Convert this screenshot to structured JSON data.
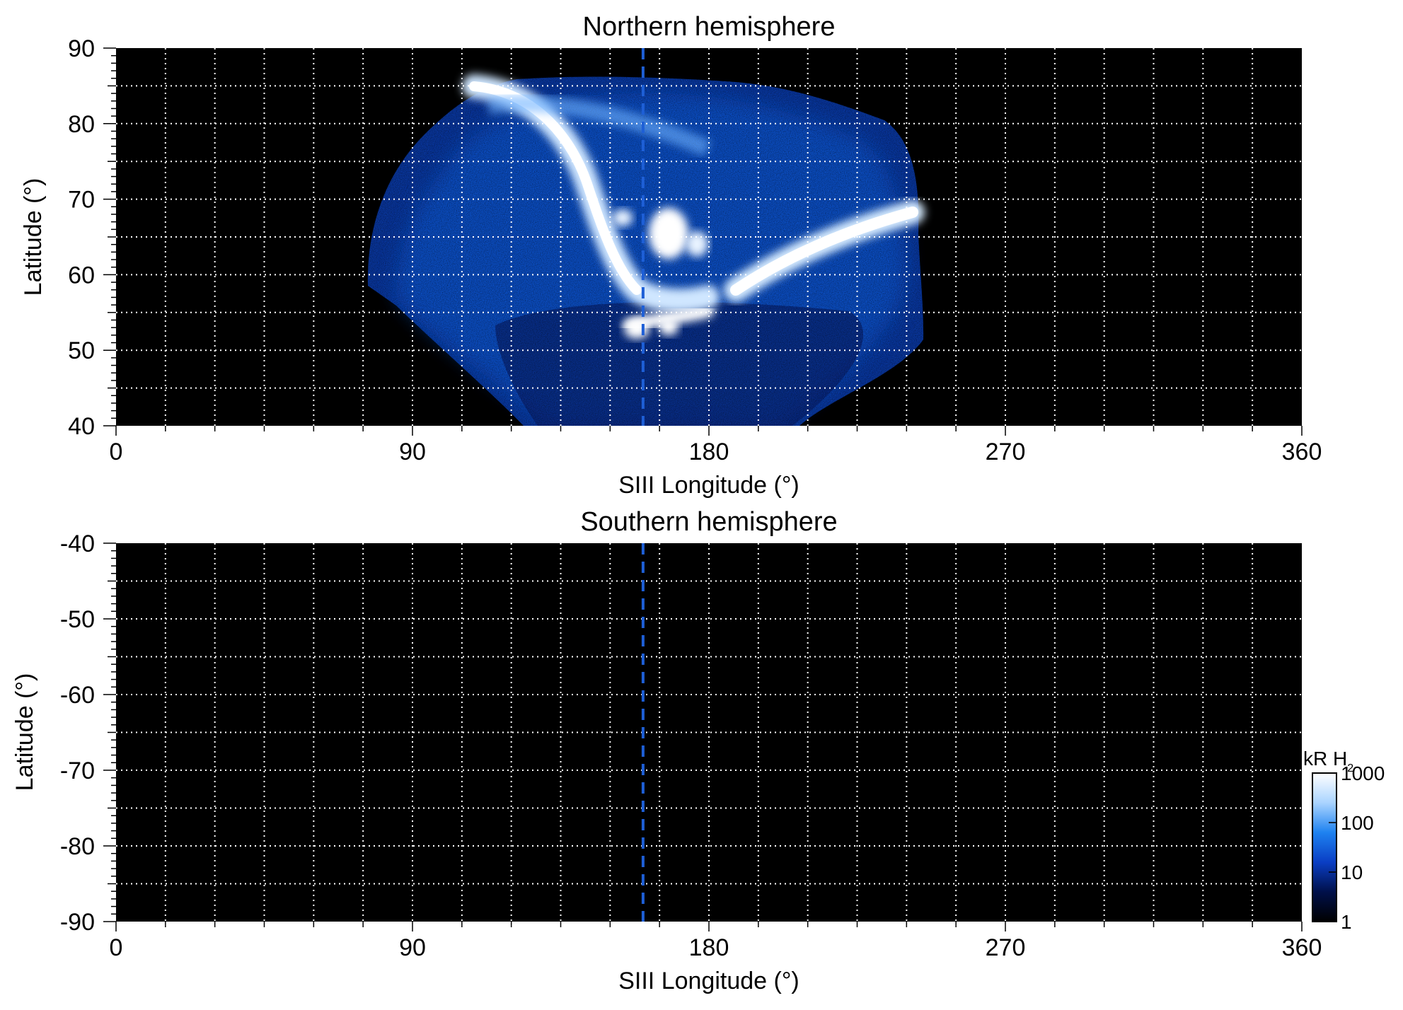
{
  "chart_data": [
    {
      "type": "heatmap",
      "title": "Northern hemisphere",
      "xlabel": "SIII Longitude (°)",
      "ylabel": "Latitude (°)",
      "xlim": [
        0,
        360
      ],
      "ylim": [
        40,
        90
      ],
      "x_ticks": [
        "0",
        "90",
        "180",
        "270",
        "360"
      ],
      "y_ticks": [
        "90",
        "80",
        "70",
        "60",
        "50",
        "40"
      ],
      "grid": true,
      "background": "#000000",
      "marker_line": {
        "longitude": 160,
        "style": "dashed",
        "color": "#1e5fd6"
      },
      "emission_region": {
        "longitude_range": [
          77,
          247
        ],
        "latitude_range": [
          40,
          87
        ]
      },
      "bright_features": [
        {
          "name": "main-oval-left-arc",
          "longitude_range": [
            120,
            175
          ],
          "latitude_range": [
            54,
            85
          ]
        },
        {
          "name": "main-oval-right-arc",
          "longitude_range": [
            190,
            245
          ],
          "latitude_range": [
            58,
            70
          ]
        },
        {
          "name": "polar-spot",
          "longitude_range": [
            163,
            176
          ],
          "latitude_range": [
            62,
            69
          ]
        },
        {
          "name": "low-latitude-spots",
          "longitude_range": [
            152,
            180
          ],
          "latitude_range": [
            51,
            57
          ]
        }
      ]
    },
    {
      "type": "heatmap",
      "title": "Southern hemisphere",
      "xlabel": "SIII Longitude (°)",
      "ylabel": "Latitude (°)",
      "xlim": [
        0,
        360
      ],
      "ylim": [
        -90,
        -40
      ],
      "x_ticks": [
        "0",
        "90",
        "180",
        "270",
        "360"
      ],
      "y_ticks": [
        "-40",
        "-50",
        "-60",
        "-70",
        "-80",
        "-90"
      ],
      "grid": true,
      "background": "#000000",
      "marker_line": {
        "longitude": 160,
        "style": "dashed",
        "color": "#1e5fd6"
      }
    }
  ],
  "colorbar": {
    "label": "kR H",
    "subscript": "2",
    "scale": "log",
    "range": [
      1,
      1000
    ],
    "ticks": [
      "1000",
      "100",
      "10",
      "1"
    ],
    "colors": [
      "#000000",
      "#00104a",
      "#0a3ec4",
      "#1e82f0",
      "#aad4ff",
      "#ffffff"
    ]
  }
}
